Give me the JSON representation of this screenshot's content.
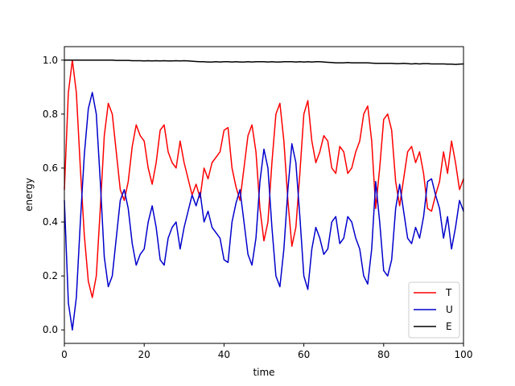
{
  "chart_data": {
    "type": "line",
    "title": "",
    "xlabel": "time",
    "ylabel": "energy",
    "xlim": [
      0,
      100
    ],
    "ylim": [
      -0.05,
      1.05
    ],
    "x_ticks": [
      "0",
      "20",
      "40",
      "60",
      "80",
      "100"
    ],
    "y_ticks": [
      "0.0",
      "0.2",
      "0.4",
      "0.6",
      "0.8",
      "1.0"
    ],
    "grid": false,
    "legend_position": "lower-right",
    "series": [
      {
        "name": "T",
        "color": "#ff0000",
        "x": [
          0,
          1,
          2,
          3,
          4,
          5,
          6,
          7,
          8,
          9,
          10,
          11,
          12,
          13,
          14,
          15,
          16,
          17,
          18,
          19,
          20,
          21,
          22,
          23,
          24,
          25,
          26,
          27,
          28,
          29,
          30,
          31,
          32,
          33,
          34,
          35,
          36,
          37,
          38,
          39,
          40,
          41,
          42,
          43,
          44,
          45,
          46,
          47,
          48,
          49,
          50,
          51,
          52,
          53,
          54,
          55,
          56,
          57,
          58,
          59,
          60,
          61,
          62,
          63,
          64,
          65,
          66,
          67,
          68,
          69,
          70,
          71,
          72,
          73,
          74,
          75,
          76,
          77,
          78,
          79,
          80,
          81,
          82,
          83,
          84,
          85,
          86,
          87,
          88,
          89,
          90,
          91,
          92,
          93,
          94,
          95,
          96,
          97,
          98,
          99,
          100
        ],
        "values": [
          0.52,
          0.88,
          1.0,
          0.88,
          0.6,
          0.35,
          0.18,
          0.12,
          0.2,
          0.45,
          0.72,
          0.84,
          0.8,
          0.66,
          0.52,
          0.48,
          0.55,
          0.68,
          0.76,
          0.72,
          0.7,
          0.6,
          0.54,
          0.62,
          0.74,
          0.76,
          0.66,
          0.62,
          0.6,
          0.7,
          0.62,
          0.56,
          0.5,
          0.54,
          0.49,
          0.6,
          0.56,
          0.62,
          0.64,
          0.66,
          0.74,
          0.75,
          0.6,
          0.53,
          0.48,
          0.6,
          0.72,
          0.76,
          0.66,
          0.45,
          0.33,
          0.4,
          0.62,
          0.8,
          0.84,
          0.7,
          0.48,
          0.31,
          0.38,
          0.58,
          0.8,
          0.85,
          0.7,
          0.62,
          0.66,
          0.72,
          0.7,
          0.6,
          0.58,
          0.68,
          0.66,
          0.58,
          0.6,
          0.66,
          0.7,
          0.8,
          0.83,
          0.7,
          0.45,
          0.6,
          0.78,
          0.8,
          0.74,
          0.55,
          0.46,
          0.56,
          0.66,
          0.68,
          0.62,
          0.66,
          0.58,
          0.45,
          0.44,
          0.5,
          0.55,
          0.66,
          0.58,
          0.7,
          0.62,
          0.52,
          0.56
        ]
      },
      {
        "name": "U",
        "color": "#0000cc",
        "x": [
          0,
          1,
          2,
          3,
          4,
          5,
          6,
          7,
          8,
          9,
          10,
          11,
          12,
          13,
          14,
          15,
          16,
          17,
          18,
          19,
          20,
          21,
          22,
          23,
          24,
          25,
          26,
          27,
          28,
          29,
          30,
          31,
          32,
          33,
          34,
          35,
          36,
          37,
          38,
          39,
          40,
          41,
          42,
          43,
          44,
          45,
          46,
          47,
          48,
          49,
          50,
          51,
          52,
          53,
          54,
          55,
          56,
          57,
          58,
          59,
          60,
          61,
          62,
          63,
          64,
          65,
          66,
          67,
          68,
          69,
          70,
          71,
          72,
          73,
          74,
          75,
          76,
          77,
          78,
          79,
          80,
          81,
          82,
          83,
          84,
          85,
          86,
          87,
          88,
          89,
          90,
          91,
          92,
          93,
          94,
          95,
          96,
          97,
          98,
          99,
          100
        ],
        "values": [
          0.48,
          0.1,
          0.0,
          0.12,
          0.4,
          0.65,
          0.82,
          0.88,
          0.8,
          0.55,
          0.27,
          0.16,
          0.2,
          0.34,
          0.48,
          0.52,
          0.45,
          0.32,
          0.24,
          0.28,
          0.3,
          0.4,
          0.46,
          0.38,
          0.26,
          0.24,
          0.34,
          0.38,
          0.4,
          0.3,
          0.38,
          0.44,
          0.5,
          0.46,
          0.51,
          0.4,
          0.44,
          0.38,
          0.36,
          0.34,
          0.26,
          0.25,
          0.4,
          0.47,
          0.52,
          0.4,
          0.28,
          0.24,
          0.34,
          0.55,
          0.67,
          0.6,
          0.38,
          0.2,
          0.16,
          0.3,
          0.52,
          0.69,
          0.62,
          0.42,
          0.2,
          0.15,
          0.3,
          0.38,
          0.34,
          0.28,
          0.3,
          0.4,
          0.42,
          0.32,
          0.34,
          0.42,
          0.4,
          0.34,
          0.3,
          0.2,
          0.17,
          0.3,
          0.55,
          0.4,
          0.22,
          0.2,
          0.26,
          0.45,
          0.54,
          0.44,
          0.34,
          0.32,
          0.38,
          0.34,
          0.42,
          0.55,
          0.56,
          0.5,
          0.45,
          0.34,
          0.42,
          0.3,
          0.38,
          0.48,
          0.44
        ]
      },
      {
        "name": "E",
        "color": "#000000",
        "x": [
          0,
          1,
          2,
          3,
          4,
          5,
          6,
          7,
          8,
          9,
          10,
          11,
          12,
          13,
          14,
          15,
          16,
          17,
          18,
          19,
          20,
          21,
          22,
          23,
          24,
          25,
          26,
          27,
          28,
          29,
          30,
          31,
          32,
          33,
          34,
          35,
          36,
          37,
          38,
          39,
          40,
          41,
          42,
          43,
          44,
          45,
          46,
          47,
          48,
          49,
          50,
          51,
          52,
          53,
          54,
          55,
          56,
          57,
          58,
          59,
          60,
          61,
          62,
          63,
          64,
          65,
          66,
          67,
          68,
          69,
          70,
          71,
          72,
          73,
          74,
          75,
          76,
          77,
          78,
          79,
          80,
          81,
          82,
          83,
          84,
          85,
          86,
          87,
          88,
          89,
          90,
          91,
          92,
          93,
          94,
          95,
          96,
          97,
          98,
          99,
          100
        ],
        "values": [
          1.0,
          1.0,
          1.0,
          1.0,
          1.0,
          1.0,
          1.0,
          1.0,
          1.0,
          1.0,
          1.0,
          1.0,
          1.0,
          0.999,
          0.999,
          0.999,
          0.999,
          0.998,
          0.998,
          0.998,
          0.997,
          0.998,
          0.997,
          0.998,
          0.997,
          0.998,
          0.997,
          0.997,
          0.998,
          0.997,
          0.998,
          0.997,
          0.996,
          0.995,
          0.994,
          0.994,
          0.993,
          0.993,
          0.994,
          0.993,
          0.994,
          0.994,
          0.993,
          0.994,
          0.993,
          0.993,
          0.994,
          0.993,
          0.994,
          0.994,
          0.994,
          0.993,
          0.994,
          0.993,
          0.993,
          0.994,
          0.994,
          0.994,
          0.993,
          0.994,
          0.993,
          0.994,
          0.993,
          0.994,
          0.994,
          0.993,
          0.992,
          0.991,
          0.99,
          0.99,
          0.99,
          0.991,
          0.99,
          0.99,
          0.99,
          0.99,
          0.99,
          0.989,
          0.988,
          0.988,
          0.988,
          0.988,
          0.988,
          0.987,
          0.987,
          0.988,
          0.987,
          0.986,
          0.987,
          0.986,
          0.987,
          0.987,
          0.986,
          0.986,
          0.986,
          0.986,
          0.985,
          0.985,
          0.984,
          0.985,
          0.986
        ]
      }
    ]
  }
}
